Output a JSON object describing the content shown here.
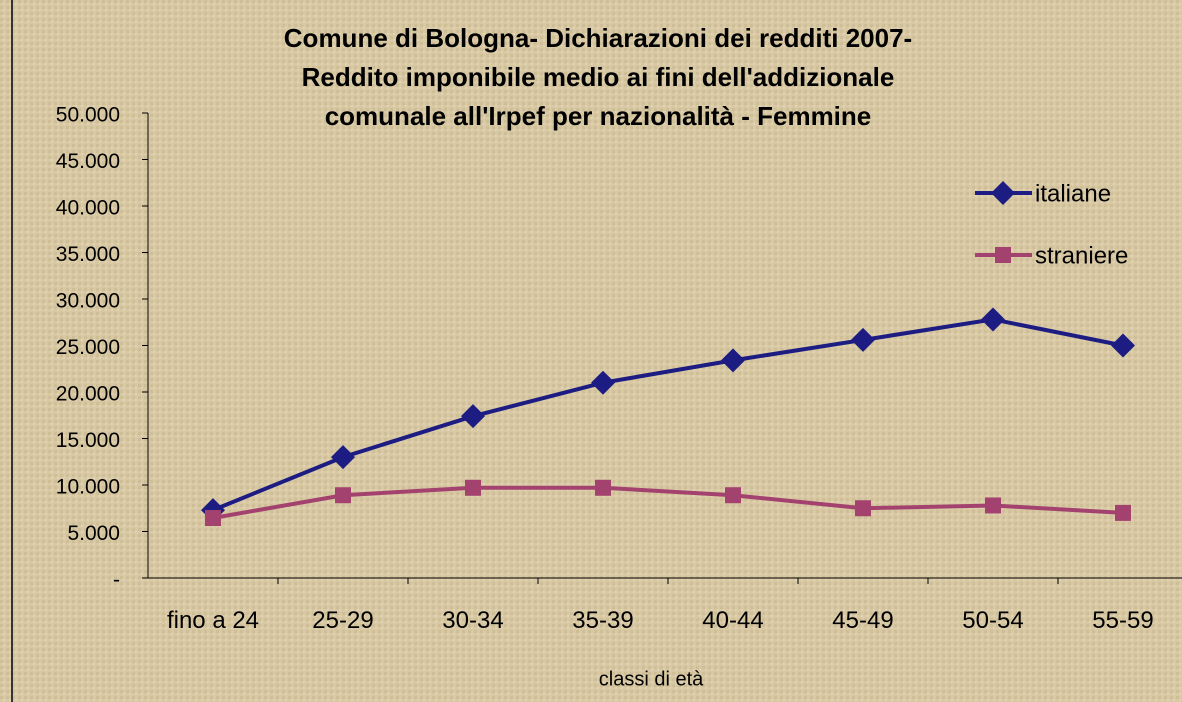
{
  "chart_data": {
    "type": "line",
    "title": [
      "Comune di Bologna- Dichiarazioni dei redditi 2007-",
      "Reddito imponibile medio ai fini dell'addizionale",
      "comunale all'Irpef per nazionalità - Femmine"
    ],
    "x_label": "classi di età",
    "categories": [
      "fino a 24",
      "25-29",
      "30-34",
      "35-39",
      "40-44",
      "45-49",
      "50-54",
      "55-59"
    ],
    "series": [
      {
        "name": "italiane",
        "color": "#1c1c82",
        "marker": "diamond",
        "values": [
          7300,
          13000,
          17400,
          21000,
          23400,
          25600,
          27800,
          25000
        ]
      },
      {
        "name": "straniere",
        "color": "#a3426f",
        "marker": "square",
        "values": [
          6450,
          8900,
          9700,
          9700,
          8900,
          7500,
          7800,
          7000
        ]
      }
    ],
    "ylim": [
      0,
      50000
    ],
    "yticks": [
      {
        "value": 0,
        "label": "-"
      },
      {
        "value": 5000,
        "label": "5.000"
      },
      {
        "value": 10000,
        "label": "10.000"
      },
      {
        "value": 15000,
        "label": "15.000"
      },
      {
        "value": 20000,
        "label": "20.000"
      },
      {
        "value": 25000,
        "label": "25.000"
      },
      {
        "value": 30000,
        "label": "30.000"
      },
      {
        "value": 35000,
        "label": "35.000"
      },
      {
        "value": 40000,
        "label": "40.000"
      },
      {
        "value": 45000,
        "label": "45.000"
      },
      {
        "value": 50000,
        "label": "50.000"
      }
    ],
    "legend": "right"
  }
}
